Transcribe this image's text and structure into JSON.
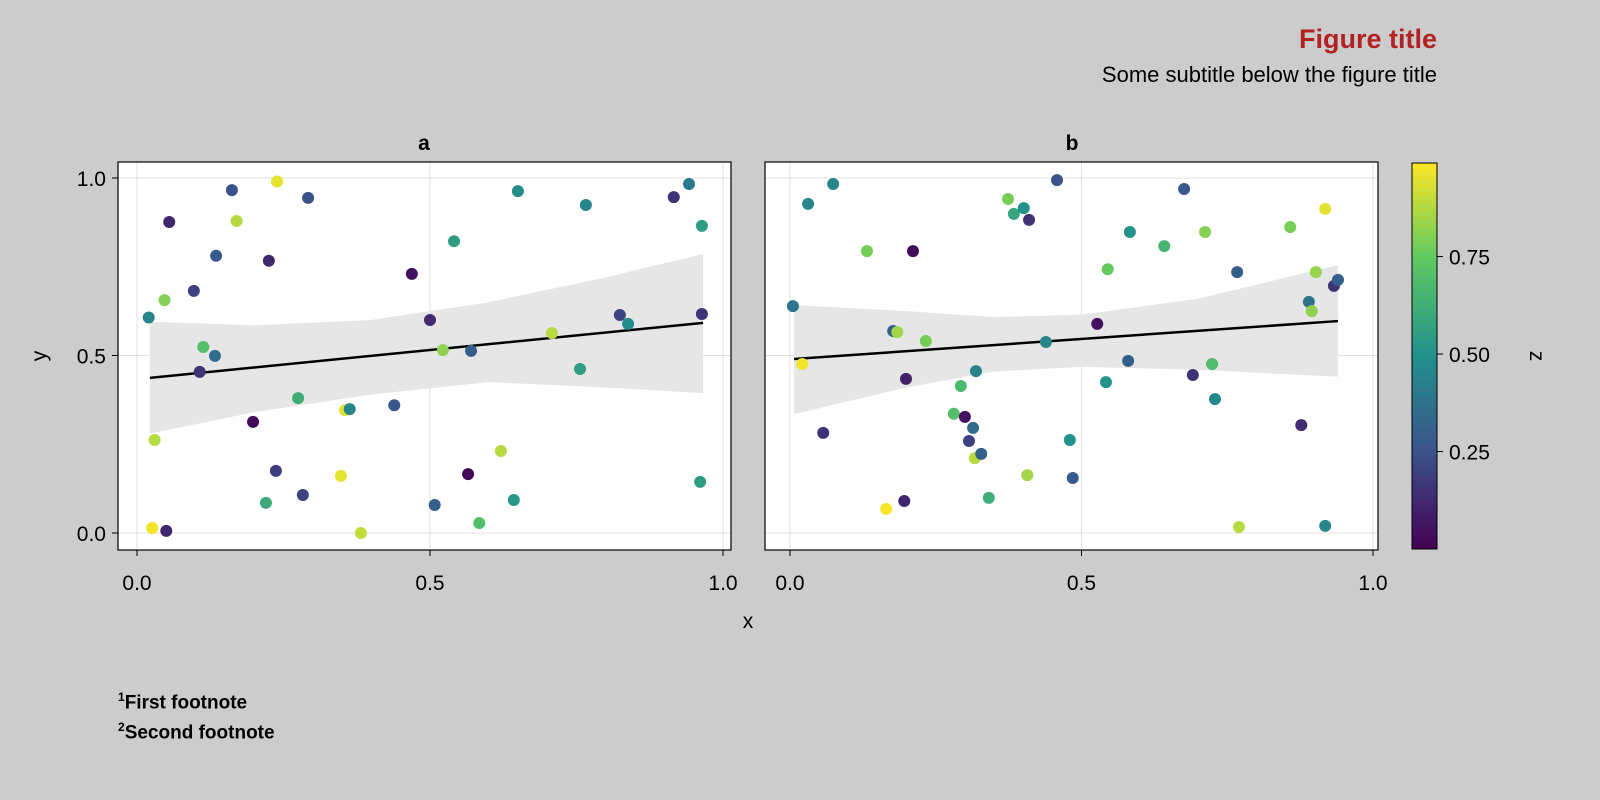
{
  "figure": {
    "title": "Figure title",
    "subtitle": "Some subtitle below the figure title",
    "title_color": "#b22222",
    "background": "#cccccc",
    "footnotes": [
      {
        "mark": "1",
        "text": "First footnote"
      },
      {
        "mark": "2",
        "text": "Second footnote"
      }
    ]
  },
  "chart_data": [
    {
      "type": "scatter",
      "title": "a",
      "xlabel": "x",
      "ylabel": "y",
      "xlim": [
        -0.03,
        1.02
      ],
      "ylim": [
        -0.05,
        1.05
      ],
      "xticks": [
        "0.0",
        "0.5",
        "1.0"
      ],
      "xtick_values": [
        0,
        0.5,
        1
      ],
      "yticks": [
        "0.0",
        "0.5",
        "1.0"
      ],
      "ytick_values": [
        0,
        0.5,
        1
      ],
      "grid": true,
      "points": [
        [
          0.02,
          0.607,
          0.45
        ],
        [
          0.026,
          0.014,
          0.97
        ],
        [
          0.03,
          0.262,
          0.88
        ],
        [
          0.047,
          0.656,
          0.8
        ],
        [
          0.055,
          0.876,
          0.12
        ],
        [
          0.05,
          0.006,
          0.12
        ],
        [
          0.097,
          0.682,
          0.2
        ],
        [
          0.107,
          0.454,
          0.15
        ],
        [
          0.113,
          0.524,
          0.7
        ],
        [
          0.133,
          0.499,
          0.35
        ],
        [
          0.135,
          0.781,
          0.27
        ],
        [
          0.162,
          0.966,
          0.25
        ],
        [
          0.17,
          0.879,
          0.88
        ],
        [
          0.22,
          0.085,
          0.6
        ],
        [
          0.239,
          0.99,
          0.95
        ],
        [
          0.237,
          0.175,
          0.18
        ],
        [
          0.198,
          0.313,
          0.03
        ],
        [
          0.225,
          0.767,
          0.12
        ],
        [
          0.275,
          0.38,
          0.62
        ],
        [
          0.283,
          0.107,
          0.2
        ],
        [
          0.292,
          0.944,
          0.25
        ],
        [
          0.348,
          0.161,
          0.95
        ],
        [
          0.355,
          0.346,
          0.95
        ],
        [
          0.363,
          0.349,
          0.45
        ],
        [
          0.382,
          0.0,
          0.9
        ],
        [
          0.439,
          0.36,
          0.27
        ],
        [
          0.469,
          0.73,
          0.05
        ],
        [
          0.5,
          0.6,
          0.13
        ],
        [
          0.508,
          0.079,
          0.3
        ],
        [
          0.522,
          0.515,
          0.82
        ],
        [
          0.541,
          0.822,
          0.55
        ],
        [
          0.565,
          0.166,
          0.02
        ],
        [
          0.57,
          0.513,
          0.3
        ],
        [
          0.584,
          0.028,
          0.7
        ],
        [
          0.621,
          0.231,
          0.88
        ],
        [
          0.643,
          0.093,
          0.52
        ],
        [
          0.65,
          0.963,
          0.48
        ],
        [
          0.708,
          0.563,
          0.88
        ],
        [
          0.756,
          0.462,
          0.55
        ],
        [
          0.766,
          0.924,
          0.45
        ],
        [
          0.824,
          0.614,
          0.2
        ],
        [
          0.838,
          0.589,
          0.48
        ],
        [
          0.916,
          0.946,
          0.15
        ],
        [
          0.942,
          0.983,
          0.4
        ],
        [
          0.964,
          0.865,
          0.55
        ],
        [
          0.964,
          0.617,
          0.15
        ],
        [
          0.961,
          0.144,
          0.55
        ]
      ],
      "fit": {
        "x": [
          0.022,
          0.966
        ],
        "y": [
          0.437,
          0.592
        ]
      },
      "band": {
        "x": [
          0.022,
          0.2,
          0.4,
          0.6,
          0.8,
          0.966
        ],
        "upper": [
          0.595,
          0.585,
          0.6,
          0.65,
          0.72,
          0.786
        ],
        "lower": [
          0.28,
          0.34,
          0.39,
          0.425,
          0.41,
          0.394
        ]
      }
    },
    {
      "type": "scatter",
      "title": "b",
      "xlabel": "x",
      "ylabel": "",
      "xlim": [
        -0.015,
        1.02
      ],
      "ylim": [
        -0.05,
        1.05
      ],
      "xticks": [
        "0.0",
        "0.5",
        "1.0"
      ],
      "xtick_values": [
        0,
        0.5,
        1
      ],
      "grid": true,
      "points": [
        [
          0.005,
          0.639,
          0.38
        ],
        [
          0.021,
          0.476,
          0.97
        ],
        [
          0.031,
          0.927,
          0.45
        ],
        [
          0.057,
          0.282,
          0.15
        ],
        [
          0.074,
          0.983,
          0.45
        ],
        [
          0.132,
          0.794,
          0.78
        ],
        [
          0.165,
          0.068,
          0.98
        ],
        [
          0.177,
          0.569,
          0.3
        ],
        [
          0.184,
          0.566,
          0.85
        ],
        [
          0.196,
          0.09,
          0.12
        ],
        [
          0.199,
          0.434,
          0.1
        ],
        [
          0.211,
          0.794,
          0.03
        ],
        [
          0.233,
          0.541,
          0.78
        ],
        [
          0.281,
          0.336,
          0.7
        ],
        [
          0.293,
          0.414,
          0.67
        ],
        [
          0.3,
          0.327,
          0.05
        ],
        [
          0.307,
          0.259,
          0.2
        ],
        [
          0.314,
          0.296,
          0.35
        ],
        [
          0.317,
          0.211,
          0.88
        ],
        [
          0.319,
          0.456,
          0.45
        ],
        [
          0.328,
          0.223,
          0.3
        ],
        [
          0.341,
          0.099,
          0.62
        ],
        [
          0.374,
          0.941,
          0.78
        ],
        [
          0.384,
          0.899,
          0.58
        ],
        [
          0.401,
          0.915,
          0.5
        ],
        [
          0.41,
          0.882,
          0.15
        ],
        [
          0.407,
          0.163,
          0.85
        ],
        [
          0.439,
          0.538,
          0.45
        ],
        [
          0.458,
          0.994,
          0.25
        ],
        [
          0.48,
          0.262,
          0.5
        ],
        [
          0.485,
          0.155,
          0.28
        ],
        [
          0.527,
          0.589,
          0.05
        ],
        [
          0.542,
          0.425,
          0.5
        ],
        [
          0.545,
          0.743,
          0.75
        ],
        [
          0.58,
          0.485,
          0.3
        ],
        [
          0.583,
          0.848,
          0.5
        ],
        [
          0.642,
          0.808,
          0.65
        ],
        [
          0.676,
          0.969,
          0.27
        ],
        [
          0.691,
          0.445,
          0.15
        ],
        [
          0.712,
          0.848,
          0.8
        ],
        [
          0.724,
          0.476,
          0.68
        ],
        [
          0.729,
          0.377,
          0.47
        ],
        [
          0.77,
          0.017,
          0.88
        ],
        [
          0.767,
          0.735,
          0.3
        ],
        [
          0.858,
          0.862,
          0.78
        ],
        [
          0.877,
          0.304,
          0.13
        ],
        [
          0.89,
          0.651,
          0.38
        ],
        [
          0.895,
          0.625,
          0.82
        ],
        [
          0.902,
          0.735,
          0.83
        ],
        [
          0.918,
          0.913,
          0.95
        ],
        [
          0.918,
          0.02,
          0.45
        ],
        [
          0.933,
          0.696,
          0.15
        ],
        [
          0.94,
          0.713,
          0.3
        ]
      ],
      "fit": {
        "x": [
          0.007,
          0.94
        ],
        "y": [
          0.49,
          0.597
        ]
      },
      "band": {
        "x": [
          0.007,
          0.2,
          0.35,
          0.5,
          0.7,
          0.94
        ],
        "upper": [
          0.642,
          0.625,
          0.608,
          0.615,
          0.66,
          0.755
        ],
        "lower": [
          0.335,
          0.41,
          0.455,
          0.468,
          0.46,
          0.44
        ]
      }
    }
  ],
  "colorbar": {
    "label": "z",
    "range": [
      0.0,
      0.99
    ],
    "ticks": [
      "0.25",
      "0.50",
      "0.75"
    ],
    "tick_values": [
      0.25,
      0.5,
      0.75
    ],
    "colormap": [
      "#440154",
      "#3b528b",
      "#21918c",
      "#5ec962",
      "#fde725"
    ]
  },
  "shared_xlabel": "x"
}
